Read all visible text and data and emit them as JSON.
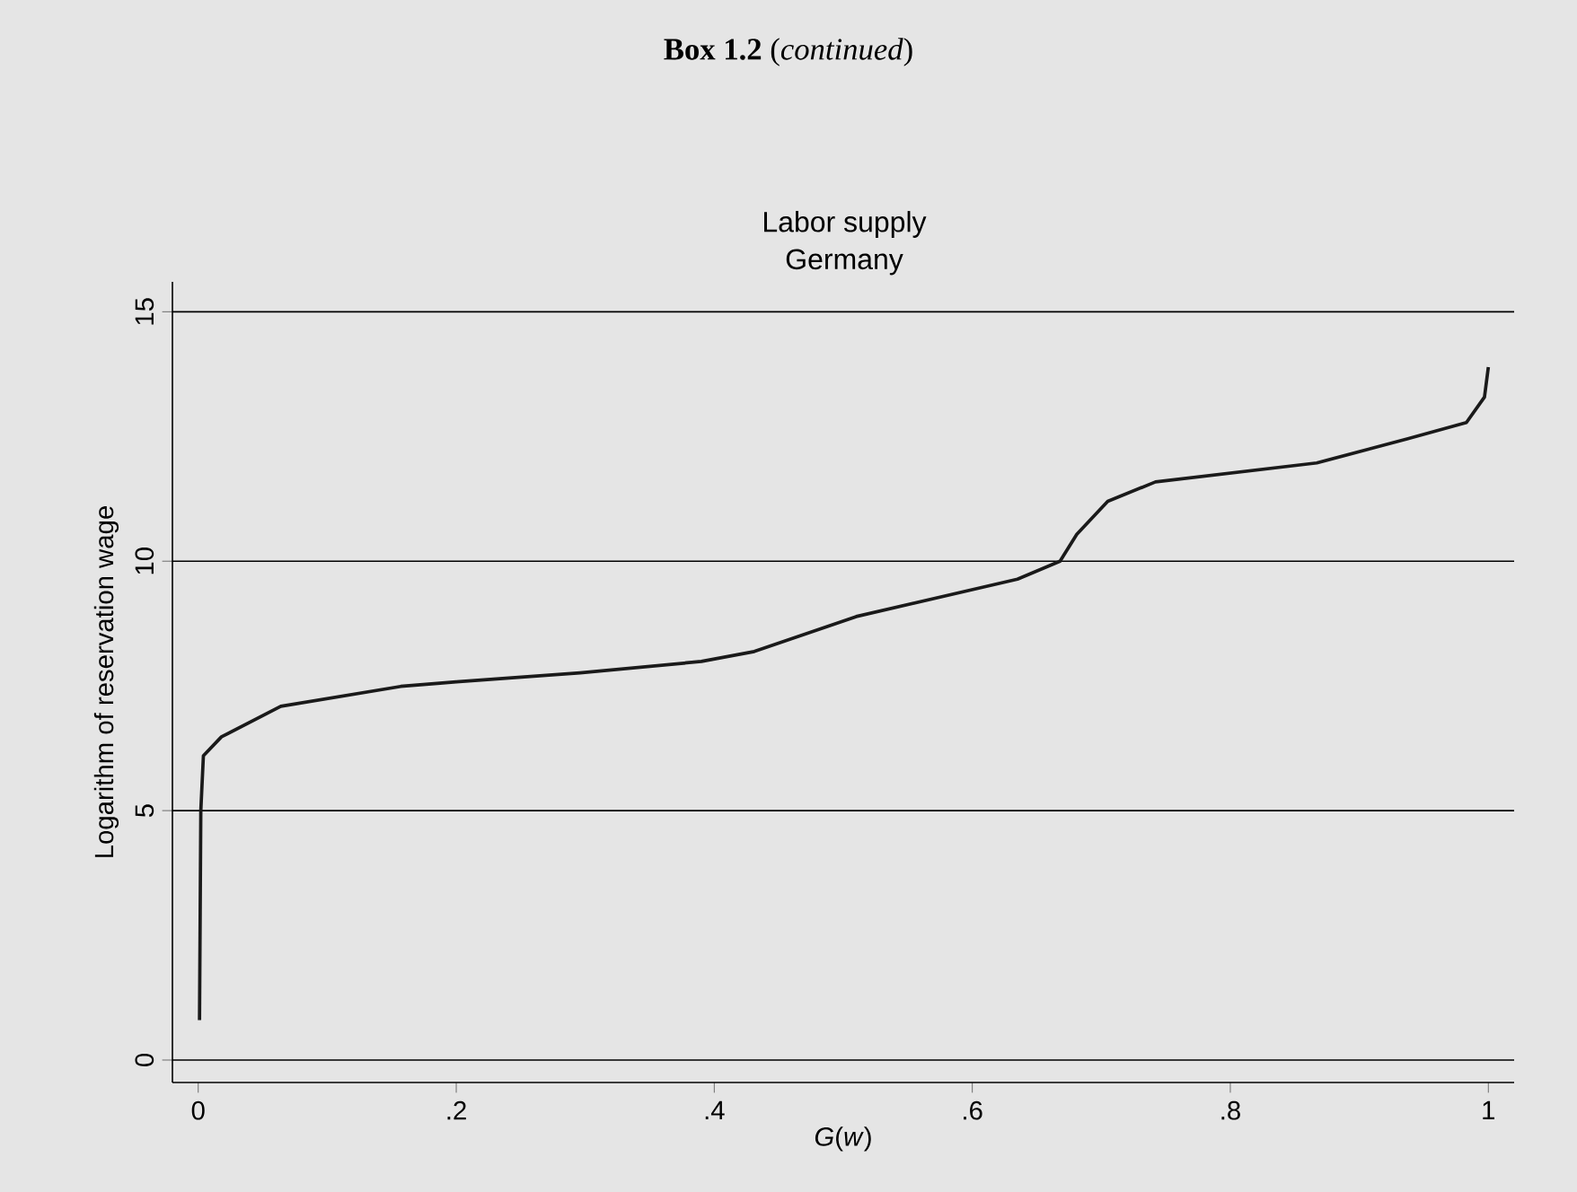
{
  "chart_data": {
    "type": "line",
    "title": "Labor supply",
    "subtitle": "Germany",
    "annotations": [
      "**Box 1.2**   (*continued*)"
    ],
    "xlabel": "*G*(*w*)",
    "ylabel": "Logarithm of reservation wage",
    "x": [
      0.001,
      0.002,
      0.004,
      0.018,
      0.064,
      0.157,
      0.2,
      0.296,
      0.39,
      0.431,
      0.51,
      0.635,
      0.668,
      0.681,
      0.705,
      0.742,
      0.867,
      0.937,
      0.983,
      0.997,
      1.0
    ],
    "series": [
      {
        "color": "#1a1a1a",
        "values": [
          0.8,
          5.0,
          6.1,
          6.48,
          7.09,
          7.49,
          7.58,
          7.76,
          7.99,
          8.19,
          8.89,
          9.64,
          10.0,
          10.54,
          11.2,
          11.59,
          11.97,
          12.45,
          12.78,
          13.29,
          13.89
        ]
      }
    ],
    "xlim": [
      -0.02,
      1.02
    ],
    "ylim": [
      -0.45,
      15.6
    ],
    "xticks": [
      0,
      {
        "value": 0.2,
        "label": ".2"
      },
      {
        "value": 0.4,
        "label": ".4"
      },
      {
        "value": 0.6,
        "label": ".6"
      },
      {
        "value": 0.8,
        "label": ".8"
      },
      1
    ],
    "yticks": [
      0,
      5,
      10,
      15
    ],
    "grid": "y"
  }
}
